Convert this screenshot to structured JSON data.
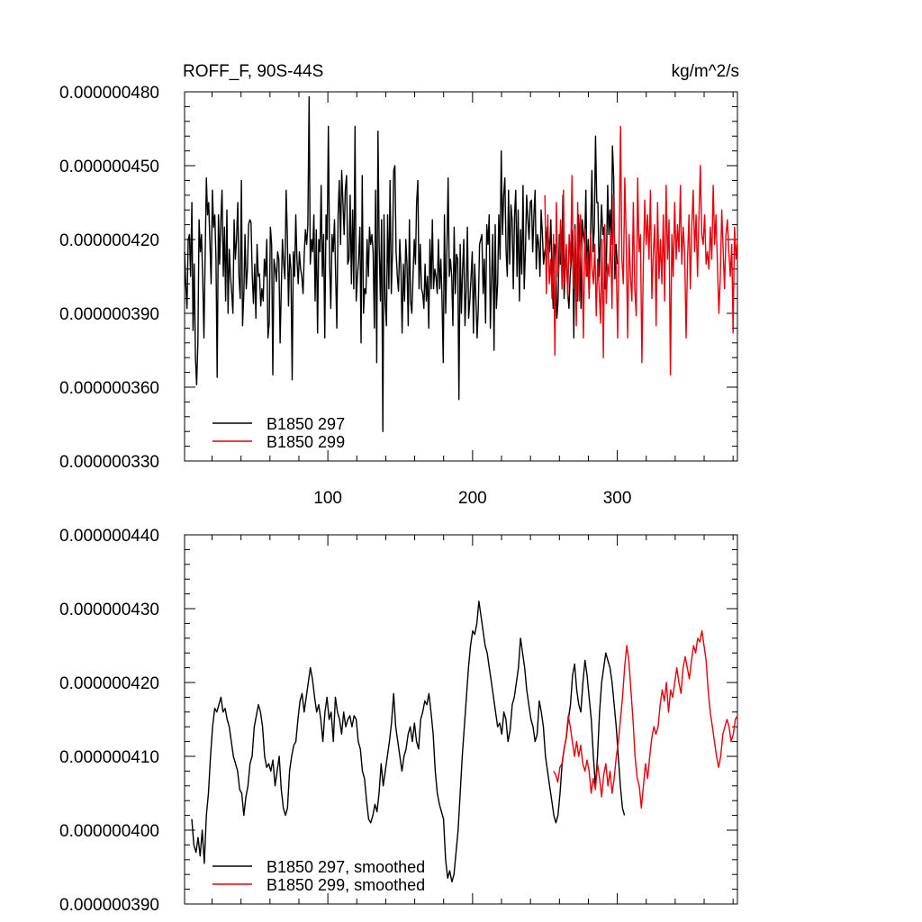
{
  "chart_data": [
    {
      "type": "line",
      "title": "ROFF_F, 90S-44S",
      "units": "kg/m^2/s",
      "xlim": [
        1,
        383
      ],
      "ylim": [
        3.3e-07,
        4.8e-07
      ],
      "xticks": [
        100,
        200,
        300
      ],
      "x_tick_labels": [
        "100",
        "200",
        "300"
      ],
      "yticks": [
        3.3e-07,
        3.6e-07,
        3.9e-07,
        4.2e-07,
        4.5e-07,
        4.8e-07
      ],
      "y_tick_labels": [
        "0.000000330",
        "0.000000360",
        "0.000000390",
        "0.000000420",
        "0.000000450",
        "0.000000480"
      ],
      "legend": "bottom-left",
      "grid": false,
      "series": [
        {
          "name": "B1850 297",
          "color": "#000000",
          "x_start": 1,
          "x_end": 300,
          "values": [
            4.15e-07,
            4.02e-07,
            3.92e-07,
            4.2e-07,
            4.22e-07,
            4.05e-07,
            4.35e-07,
            3.83e-07,
            4.1e-07,
            3.72e-07,
            3.61e-07,
            3.78e-07,
            4.28e-07,
            4.15e-07,
            4.22e-07,
            4.05e-07,
            3.8e-07,
            4.12e-07,
            4.45e-07,
            4.3e-07,
            4.35e-07,
            4.18e-07,
            4.02e-07,
            4.4e-07,
            4.25e-07,
            4.3e-07,
            4.12e-07,
            3.64e-07,
            4.3e-07,
            4.1e-07,
            4.28e-07,
            4.4e-07,
            4.05e-07,
            4.25e-07,
            3.95e-07,
            4.32e-07,
            3.9e-07,
            4.16e-07,
            4.05e-07,
            3.98e-07,
            3.9e-07,
            4.28e-07,
            4.12e-07,
            4.2e-07,
            4.35e-07,
            4.05e-07,
            3.96e-07,
            4.44e-07,
            3.85e-07,
            3.98e-07,
            4.22e-07,
            4e-07,
            4.08e-07,
            4.26e-07,
            4.28e-07,
            4.27e-07,
            4.05e-07,
            3.94e-07,
            4.1e-07,
            3.88e-07,
            4.18e-07,
            4.05e-07,
            4.06e-07,
            3.93e-07,
            4e-07,
            3.95e-07,
            4.12e-07,
            4.05e-07,
            4.2e-07,
            3.8e-07,
            3.86e-07,
            4.25e-07,
            4.18e-07,
            3.65e-07,
            4.12e-07,
            4.08e-07,
            4.03e-07,
            4.15e-07,
            4.12e-07,
            3.78e-07,
            4e-07,
            4.2e-07,
            4.1e-07,
            4.04e-07,
            4.4e-07,
            4.22e-07,
            3.93e-07,
            4.14e-07,
            4.08e-07,
            3.63e-07,
            4.15e-07,
            4.05e-07,
            4.3e-07,
            4.12e-07,
            4.02e-07,
            4.15e-07,
            4.08e-07,
            4.05e-07,
            3.98e-07,
            4.14e-07,
            4.24e-07,
            4.18e-07,
            4.26e-07,
            4.78e-07,
            4.1e-07,
            4.2e-07,
            4.15e-07,
            4.3e-07,
            3.95e-07,
            4.24e-07,
            3.82e-07,
            4.2e-07,
            4.15e-07,
            4.42e-07,
            4.05e-07,
            4.22e-07,
            3.8e-07,
            4.3e-07,
            4.2e-07,
            4.66e-07,
            4.1e-07,
            3.92e-07,
            4.22e-07,
            4.15e-07,
            4.28e-07,
            4.05e-07,
            3.84e-07,
            4.3e-07,
            4.44e-07,
            4.18e-07,
            4.48e-07,
            4.35e-07,
            4.22e-07,
            4.4e-07,
            4.46e-07,
            4.1e-07,
            4.12e-07,
            4.38e-07,
            4.02e-07,
            4.32e-07,
            4e-07,
            4.66e-07,
            3.95e-07,
            4.05e-07,
            4.12e-07,
            4.25e-07,
            3.78e-07,
            4.46e-07,
            3.9e-07,
            4e-07,
            3.98e-07,
            4.2e-07,
            4.05e-07,
            4.25e-07,
            4.18e-07,
            4.22e-07,
            4.15e-07,
            3.84e-07,
            4.4e-07,
            3.7e-07,
            4.64e-07,
            4.18e-07,
            3.95e-07,
            4.28e-07,
            3.42e-07,
            4.3e-07,
            3.95e-07,
            3.85e-07,
            4.3e-07,
            4e-07,
            4.44e-07,
            3.98e-07,
            4.15e-07,
            4.48e-07,
            4.5e-07,
            4.15e-07,
            4.05e-07,
            3.99e-07,
            4.2e-07,
            4.08e-07,
            3.82e-07,
            4.1e-07,
            3.95e-07,
            4.2e-07,
            4.1e-07,
            3.85e-07,
            4.28e-07,
            3.95e-07,
            3.9e-07,
            4.05e-07,
            4.2e-07,
            4.1e-07,
            4.35e-07,
            4.44e-07,
            4e-07,
            4.18e-07,
            4e-07,
            3.98e-07,
            3.92e-07,
            4.1e-07,
            3.95e-07,
            4.05e-07,
            3.84e-07,
            4.2e-07,
            4e-07,
            4.28e-07,
            4e-07,
            4.08e-07,
            4.05e-07,
            3.98e-07,
            4.2e-07,
            4e-07,
            4.12e-07,
            3.96e-07,
            3.7e-07,
            4.3e-07,
            3.9e-07,
            4.15e-07,
            4.45e-07,
            4.05e-07,
            4.12e-07,
            4.05e-07,
            3.85e-07,
            4.25e-07,
            3.98e-07,
            4.14e-07,
            4.12e-07,
            3.55e-07,
            4.18e-07,
            3.9e-07,
            4.08e-07,
            4.2e-07,
            3.85e-07,
            4e-07,
            4.25e-07,
            3.88e-07,
            3.95e-07,
            4.05e-07,
            4.15e-07,
            3.82e-07,
            4.1e-07,
            3.96e-07,
            3.8e-07,
            3.92e-07,
            4.18e-07,
            4.2e-07,
            4.22e-07,
            3.98e-07,
            4.12e-07,
            3.86e-07,
            4.26e-07,
            4.18e-07,
            4.3e-07,
            3.84e-07,
            4.05e-07,
            4.22e-07,
            3.75e-07,
            4.26e-07,
            3.92e-07,
            4.02e-07,
            4.3e-07,
            4.12e-07,
            4.56e-07,
            4.22e-07,
            4.38e-07,
            4.45e-07,
            4.15e-07,
            4.05e-07,
            4.4e-07,
            4.1e-07,
            4.34e-07,
            4.28e-07,
            4e-07,
            4.3e-07,
            4.4e-07,
            4.05e-07,
            4.32e-07,
            3.95e-07,
            4.24e-07,
            4.06e-07,
            4.42e-07,
            4e-07,
            4.16e-07,
            4.38e-07,
            4.28e-07,
            4.2e-07,
            4.35e-07,
            4.36e-07,
            4.15e-07,
            4.3e-07,
            4.4e-07,
            4.08e-07,
            4.22e-07,
            4.18e-07,
            4.05e-07,
            4.32e-07,
            4.22e-07,
            4.1e-07,
            4.15e-07,
            4.18e-07,
            4.25e-07,
            4.2e-07,
            4.15e-07,
            4.28e-07,
            4.05e-07,
            3.92e-07,
            4.18e-07,
            4.15e-07,
            3.88e-07,
            3.95e-07,
            4.22e-07,
            4.1e-07,
            4.12e-07,
            4.38e-07,
            3.96e-07,
            4.1e-07,
            4.12e-07,
            3.98e-07,
            3.92e-07,
            4.05e-07,
            4.12e-07,
            4.24e-07,
            3.8e-07,
            4.26e-07,
            4.05e-07,
            3.95e-07,
            4.3e-07,
            4.15e-07,
            3.92e-07,
            4.28e-07,
            4.22e-07,
            4.18e-07,
            4.4e-07,
            4.05e-07,
            4.2e-07,
            4e-07,
            4.25e-07,
            4.48e-07,
            4.15e-07,
            4.25e-07,
            4.62e-07,
            4.35e-07,
            4.35e-07,
            4.05e-07,
            4.2e-07,
            4.34e-07,
            4.22e-07,
            4.25e-07,
            4e-07,
            4.1e-07,
            4.42e-07,
            4.22e-07,
            4.32e-07,
            4.18e-07,
            4.58e-07,
            4.45e-07,
            4.04e-07,
            4.18e-07,
            4.1e-07
          ]
        },
        {
          "name": "B1850 299",
          "color": "#e8000b",
          "x_start": 250,
          "x_end": 383,
          "values": [
            4.38e-07,
            3.98e-07,
            4.3e-07,
            4.02e-07,
            4.12e-07,
            3.96e-07,
            4.22e-07,
            3.73e-07,
            4.35e-07,
            4.05e-07,
            4.1e-07,
            4.28e-07,
            4e-07,
            4.4e-07,
            4.02e-07,
            4.18e-07,
            3.96e-07,
            4.22e-07,
            4.1e-07,
            4.46e-07,
            4e-07,
            4.24e-07,
            3.85e-07,
            4.35e-07,
            3.95e-07,
            4.3e-07,
            4.12e-07,
            3.8e-07,
            4.24e-07,
            4.05e-07,
            4.15e-07,
            3.96e-07,
            4.22e-07,
            4.08e-07,
            4.02e-07,
            4.18e-07,
            3.89e-07,
            4.12e-07,
            4e-07,
            3.86e-07,
            4.2e-07,
            3.72e-07,
            4.26e-07,
            3.94e-07,
            4.1e-07,
            4.05e-07,
            4.22e-07,
            3.92e-07,
            4.38e-07,
            4.15e-07,
            4.1e-07,
            3.8e-07,
            4.2e-07,
            4.66e-07,
            4.12e-07,
            4.02e-07,
            4.45e-07,
            4.2e-07,
            3.8e-07,
            4.22e-07,
            4.05e-07,
            3.95e-07,
            4.35e-07,
            4e-07,
            3.89e-07,
            4.45e-07,
            4.15e-07,
            4.22e-07,
            3.7e-07,
            4.1e-07,
            4.36e-07,
            4.18e-07,
            4.3e-07,
            4.12e-07,
            4.4e-07,
            3.96e-07,
            4.15e-07,
            4.26e-07,
            3.85e-07,
            4.35e-07,
            4.04e-07,
            4.2e-07,
            4.02e-07,
            4.3e-07,
            3.95e-07,
            4.42e-07,
            4.12e-07,
            4.28e-07,
            3.65e-07,
            4.22e-07,
            4.05e-07,
            4.35e-07,
            4.12e-07,
            4.26e-07,
            4.15e-07,
            4.42e-07,
            4.1e-07,
            4.25e-07,
            4.15e-07,
            3.8e-07,
            4.12e-07,
            4.3e-07,
            4e-07,
            4.25e-07,
            4.4e-07,
            4.15e-07,
            4.3e-07,
            4.05e-07,
            4.28e-07,
            4.5e-07,
            4.22e-07,
            4.18e-07,
            4.3e-07,
            4.1e-07,
            4.15e-07,
            4.08e-07,
            4.25e-07,
            4.12e-07,
            4.42e-07,
            4.18e-07,
            4.3e-07,
            4.1e-07,
            3.9e-07,
            4.05e-07,
            4.32e-07,
            4.15e-07,
            4e-07,
            4.22e-07,
            4.28e-07,
            4.15e-07,
            4.05e-07,
            4.18e-07,
            3.82e-07,
            4.25e-07,
            4.12e-07,
            4.2e-07
          ]
        }
      ]
    },
    {
      "type": "line",
      "title": "",
      "units": "",
      "xlim": [
        1,
        383
      ],
      "ylim": [
        3.9e-07,
        4.4e-07
      ],
      "xticks": [
        100,
        200,
        300
      ],
      "x_tick_labels": [],
      "yticks": [
        3.9e-07,
        4e-07,
        4.1e-07,
        4.2e-07,
        4.3e-07,
        4.4e-07
      ],
      "y_tick_labels": [
        "0.000000390",
        "0.000000400",
        "0.000000410",
        "0.000000420",
        "0.000000430",
        "0.000000440"
      ],
      "legend": "bottom-left",
      "grid": false,
      "series": [
        {
          "name": "B1850 297, smoothed",
          "color": "#000000",
          "x_start": 6,
          "x_end": 305,
          "values": [
            4.015e-07,
            3.98e-07,
            3.97e-07,
            3.99e-07,
            3.965e-07,
            4e-07,
            3.955e-07,
            4.02e-07,
            4.05e-07,
            4.1e-07,
            4.14e-07,
            4.165e-07,
            4.16e-07,
            4.17e-07,
            4.18e-07,
            4.16e-07,
            4.165e-07,
            4.15e-07,
            4.14e-07,
            4.12e-07,
            4.1e-07,
            4.09e-07,
            4.08e-07,
            4.055e-07,
            4.05e-07,
            4.02e-07,
            4.045e-07,
            4.06e-07,
            4.09e-07,
            4.1e-07,
            4.14e-07,
            4.155e-07,
            4.17e-07,
            4.16e-07,
            4.14e-07,
            4.1e-07,
            4.085e-07,
            4.09e-07,
            4.08e-07,
            4.095e-07,
            4.06e-07,
            4.08e-07,
            4.1e-07,
            4.055e-07,
            4.03e-07,
            4.02e-07,
            4.03e-07,
            4.08e-07,
            4.1e-07,
            4.115e-07,
            4.12e-07,
            4.15e-07,
            4.175e-07,
            4.185e-07,
            4.16e-07,
            4.18e-07,
            4.2e-07,
            4.22e-07,
            4.205e-07,
            4.18e-07,
            4.16e-07,
            4.17e-07,
            4.15e-07,
            4.12e-07,
            4.16e-07,
            4.18e-07,
            4.15e-07,
            4.16e-07,
            4.12e-07,
            4.18e-07,
            4.16e-07,
            4.15e-07,
            4.13e-07,
            4.16e-07,
            4.14e-07,
            4.15e-07,
            4.155e-07,
            4.14e-07,
            4.155e-07,
            4.15e-07,
            4.12e-07,
            4.11e-07,
            4.08e-07,
            4.07e-07,
            4.04e-07,
            4.015e-07,
            4.01e-07,
            4.02e-07,
            4.035e-07,
            4.025e-07,
            4.05e-07,
            4.09e-07,
            4.06e-07,
            4.08e-07,
            4.1e-07,
            4.12e-07,
            4.145e-07,
            4.185e-07,
            4.14e-07,
            4.12e-07,
            4.1e-07,
            4.08e-07,
            4.1e-07,
            4.11e-07,
            4.13e-07,
            4.14e-07,
            4.12e-07,
            4.145e-07,
            4.12e-07,
            4.11e-07,
            4.15e-07,
            4.16e-07,
            4.175e-07,
            4.17e-07,
            4.185e-07,
            4.16e-07,
            4.13e-07,
            4.08e-07,
            4.05e-07,
            4.035e-07,
            4.025e-07,
            4.015e-07,
            3.96e-07,
            3.935e-07,
            3.945e-07,
            3.93e-07,
            3.94e-07,
            3.97e-07,
            4e-07,
            4.05e-07,
            4.1e-07,
            4.14e-07,
            4.18e-07,
            4.22e-07,
            4.25e-07,
            4.27e-07,
            4.265e-07,
            4.28e-07,
            4.31e-07,
            4.29e-07,
            4.27e-07,
            4.25e-07,
            4.24e-07,
            4.22e-07,
            4.2e-07,
            4.18e-07,
            4.16e-07,
            4.14e-07,
            4.145e-07,
            4.13e-07,
            4.16e-07,
            4.15e-07,
            4.12e-07,
            4.135e-07,
            4.17e-07,
            4.18e-07,
            4.2e-07,
            4.22e-07,
            4.26e-07,
            4.24e-07,
            4.22e-07,
            4.19e-07,
            4.17e-07,
            4.15e-07,
            4.14e-07,
            4.12e-07,
            4.13e-07,
            4.175e-07,
            4.16e-07,
            4.14e-07,
            4.1e-07,
            4.08e-07,
            4.06e-07,
            4.04e-07,
            4.02e-07,
            4.01e-07,
            4.02e-07,
            4.05e-07,
            4.09e-07,
            4.11e-07,
            4.125e-07,
            4.15e-07,
            4.17e-07,
            4.21e-07,
            4.225e-07,
            4.19e-07,
            4.17e-07,
            4.16e-07,
            4.2e-07,
            4.23e-07,
            4.21e-07,
            4.18e-07,
            4.15e-07,
            4.1e-07,
            4.06e-07,
            4.1e-07,
            4.16e-07,
            4.2e-07,
            4.22e-07,
            4.24e-07,
            4.23e-07,
            4.22e-07,
            4.2e-07,
            4.17e-07,
            4.14e-07,
            4.1e-07,
            4.06e-07,
            4.03e-07,
            4.02e-07
          ]
        },
        {
          "name": "B1850 299, smoothed",
          "color": "#e8000b",
          "x_start": 256,
          "x_end": 383,
          "values": [
            4.08e-07,
            4.075e-07,
            4.065e-07,
            4.085e-07,
            4.09e-07,
            4.11e-07,
            4.125e-07,
            4.155e-07,
            4.14e-07,
            4.12e-07,
            4.1e-07,
            4.12e-07,
            4.1e-07,
            4.115e-07,
            4.09e-07,
            4.08e-07,
            4.095e-07,
            4.08e-07,
            4.05e-07,
            4.07e-07,
            4.055e-07,
            4.09e-07,
            4.07e-07,
            4.045e-07,
            4.075e-07,
            4.09e-07,
            4.06e-07,
            4.08e-07,
            4.05e-07,
            4.07e-07,
            4.1e-07,
            4.12e-07,
            4.15e-07,
            4.18e-07,
            4.22e-07,
            4.25e-07,
            4.23e-07,
            4.19e-07,
            4.15e-07,
            4.1e-07,
            4.07e-07,
            4.06e-07,
            4.03e-07,
            4.06e-07,
            4.09e-07,
            4.07e-07,
            4.1e-07,
            4.125e-07,
            4.14e-07,
            4.13e-07,
            4.14e-07,
            4.17e-07,
            4.19e-07,
            4.175e-07,
            4.2e-07,
            4.16e-07,
            4.19e-07,
            4.18e-07,
            4.2e-07,
            4.22e-07,
            4.2e-07,
            4.185e-07,
            4.22e-07,
            4.235e-07,
            4.22e-07,
            4.205e-07,
            4.23e-07,
            4.25e-07,
            4.24e-07,
            4.26e-07,
            4.255e-07,
            4.27e-07,
            4.25e-07,
            4.23e-07,
            4.19e-07,
            4.16e-07,
            4.14e-07,
            4.12e-07,
            4.1e-07,
            4.085e-07,
            4.1e-07,
            4.13e-07,
            4.14e-07,
            4.15e-07,
            4.14e-07,
            4.12e-07,
            4.13e-07,
            4.15e-07,
            4.155e-07
          ]
        }
      ]
    }
  ]
}
